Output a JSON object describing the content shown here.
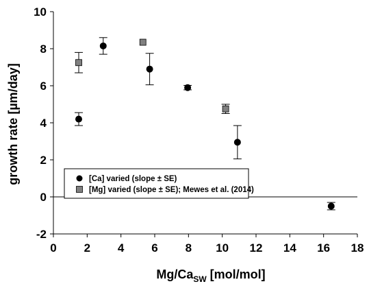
{
  "chart_data": {
    "type": "scatter",
    "xlabel_main": "Mg/Ca",
    "xlabel_sub": "SW",
    "xlabel_unit": " [mol/mol]",
    "ylabel": "growth rate [µm/day]",
    "xlim": [
      0,
      18
    ],
    "ylim": [
      -2,
      10
    ],
    "xticks": [
      0,
      2,
      4,
      6,
      8,
      10,
      12,
      14,
      16,
      18
    ],
    "yticks": [
      -2,
      0,
      2,
      4,
      6,
      8,
      10
    ],
    "legend_position": "center-left",
    "series": [
      {
        "name": "[Ca] varied (slope ± SE)",
        "marker": "circle",
        "color": "#000000",
        "points": [
          {
            "x": 1.5,
            "y": 4.2,
            "err": 0.35
          },
          {
            "x": 2.95,
            "y": 8.15,
            "err": 0.45
          },
          {
            "x": 5.7,
            "y": 6.9,
            "err": 0.85
          },
          {
            "x": 7.95,
            "y": 5.9,
            "err": 0.12
          },
          {
            "x": 10.9,
            "y": 2.95,
            "err": 0.9
          },
          {
            "x": 16.45,
            "y": -0.5,
            "err": 0.2
          }
        ]
      },
      {
        "name": "[Mg] varied (slope ± SE); Mewes et al. (2014)",
        "marker": "square",
        "color": "#808080",
        "points": [
          {
            "x": 1.5,
            "y": 7.25,
            "err": 0.55
          },
          {
            "x": 5.3,
            "y": 8.35,
            "err": 0.0
          },
          {
            "x": 10.2,
            "y": 4.75,
            "err": 0.25
          }
        ]
      }
    ]
  }
}
